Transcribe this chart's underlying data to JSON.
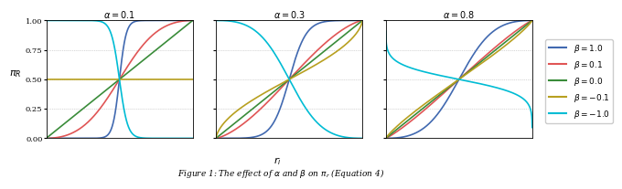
{
  "alphas": [
    0.1,
    0.3,
    0.8
  ],
  "betas": [
    1.0,
    0.1,
    0.0,
    -0.1,
    -1.0
  ],
  "beta_colors": [
    "#4169b0",
    "#e05555",
    "#3a8c3a",
    "#b8a020",
    "#00bcd4"
  ],
  "beta_labels": [
    "\\beta = 1.0",
    "\\beta = 0.1",
    "\\beta = 0.0",
    "\\beta = -0.1",
    "\\beta = -1.0"
  ],
  "xlim": [
    0.0,
    1.0
  ],
  "ylim": [
    0.0,
    1.0
  ],
  "yticks": [
    0.0,
    0.25,
    0.5,
    0.75,
    1.0
  ],
  "background_color": "#ffffff",
  "linewidth": 1.2,
  "caption": "Figure 1: The effect of $\\alpha$ and $\\beta$ on $\\pi_r$ (Equation 4)"
}
